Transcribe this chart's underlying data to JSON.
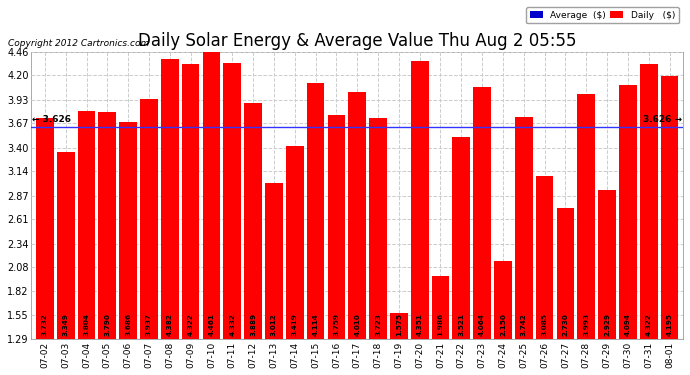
{
  "title": "Daily Solar Energy & Average Value Thu Aug 2 05:55",
  "copyright": "Copyright 2012 Cartronics.com",
  "categories": [
    "07-02",
    "07-03",
    "07-04",
    "07-05",
    "07-06",
    "07-07",
    "07-08",
    "07-09",
    "07-10",
    "07-11",
    "07-12",
    "07-13",
    "07-14",
    "07-15",
    "07-16",
    "07-17",
    "07-18",
    "07-19",
    "07-20",
    "07-21",
    "07-22",
    "07-23",
    "07-24",
    "07-25",
    "07-26",
    "07-27",
    "07-28",
    "07-29",
    "07-30",
    "07-31",
    "08-01"
  ],
  "values": [
    3.732,
    3.349,
    3.804,
    3.79,
    3.686,
    3.937,
    4.382,
    4.322,
    4.461,
    4.332,
    3.889,
    3.012,
    3.419,
    4.114,
    3.759,
    4.01,
    3.723,
    1.575,
    4.351,
    1.986,
    3.521,
    4.064,
    2.15,
    3.742,
    3.085,
    2.73,
    3.993,
    2.929,
    4.094,
    4.322,
    4.195
  ],
  "bar_color": "#ff0000",
  "avg_value": 3.626,
  "avg_color": "#3333ff",
  "ylim_min": 1.29,
  "ylim_max": 4.46,
  "yticks": [
    1.29,
    1.55,
    1.82,
    2.08,
    2.34,
    2.61,
    2.87,
    3.14,
    3.4,
    3.67,
    3.93,
    4.2,
    4.46
  ],
  "bg_color": "#ffffff",
  "plot_bg_color": "#ffffff",
  "grid_color": "#cccccc",
  "title_fontsize": 12,
  "bar_label_fontsize": 5.2,
  "avg_label_left": "← 3.626",
  "avg_label_right": "3.626 →",
  "legend_avg_color": "#0000cc",
  "legend_daily_color": "#ff0000",
  "legend_avg_text": "Average  ($)",
  "legend_daily_text": "Daily   ($)"
}
